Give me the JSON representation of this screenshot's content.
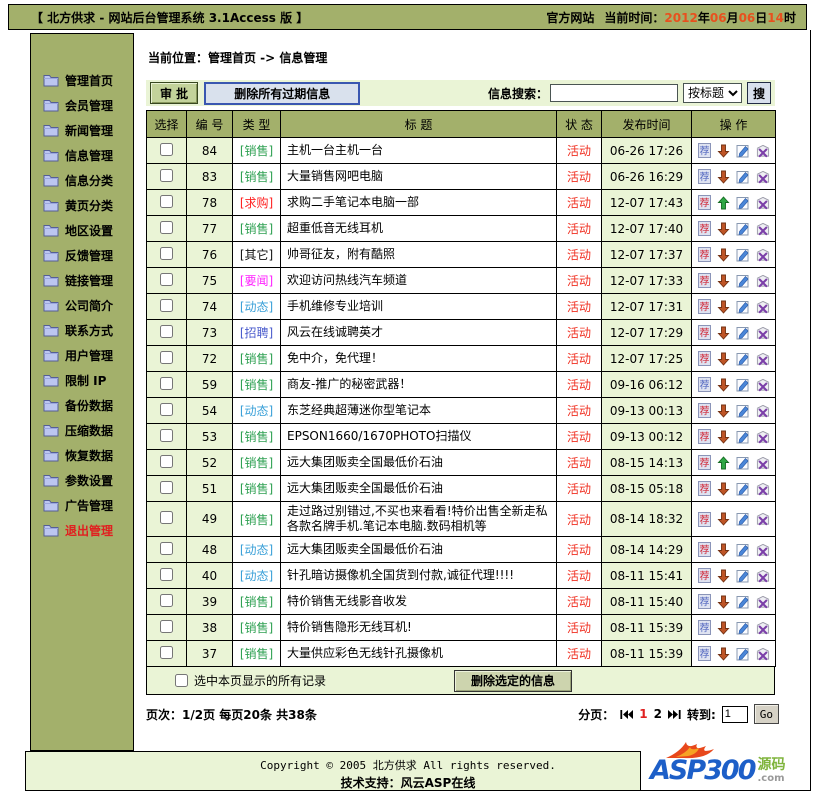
{
  "colors": {
    "olive": "#A3B06B",
    "light_green": "#EAF4D6",
    "status_red": "#F03022",
    "date_orange": "#E8501E",
    "recommended_red": "#D02838",
    "recommend_blue": "#5468C0",
    "type_sale_green": "#2EA052",
    "type_buy_red": "#FF2222",
    "type_other_black": "#111111",
    "type_news_magenta": "#FF22FF",
    "type_dynamic_blue": "#3AA0D8",
    "type_job_blue": "#4A5BCC"
  },
  "icons": {
    "folder": "folder-icon",
    "recommend": "recommend-icon (荐)",
    "move_up": "up-arrow-icon",
    "move_down": "down-arrow-icon",
    "edit": "edit-icon",
    "delete": "delete-icon",
    "first_page": "first-page-icon",
    "last_page": "last-page-icon"
  },
  "topbar": {
    "title": "【 北方供求 - 网站后台管理系统 3.1Access 版 】",
    "official_site": "官方网站",
    "time_label": "当前时间：",
    "time_parts": [
      {
        "text": "2012",
        "hl": true
      },
      {
        "text": "年",
        "hl": false
      },
      {
        "text": "06",
        "hl": true
      },
      {
        "text": "月",
        "hl": false
      },
      {
        "text": "06",
        "hl": true
      },
      {
        "text": "日",
        "hl": false
      },
      {
        "text": "14",
        "hl": true
      },
      {
        "text": "时",
        "hl": false
      }
    ]
  },
  "sidebar": {
    "items": [
      {
        "label": "管理首页",
        "danger": false
      },
      {
        "label": "会员管理",
        "danger": false
      },
      {
        "label": "新闻管理",
        "danger": false
      },
      {
        "label": "信息管理",
        "danger": false
      },
      {
        "label": "信息分类",
        "danger": false
      },
      {
        "label": "黄页分类",
        "danger": false
      },
      {
        "label": "地区设置",
        "danger": false
      },
      {
        "label": "反馈管理",
        "danger": false
      },
      {
        "label": "链接管理",
        "danger": false
      },
      {
        "label": "公司简介",
        "danger": false
      },
      {
        "label": "联系方式",
        "danger": false
      },
      {
        "label": "用户管理",
        "danger": false
      },
      {
        "label": "限制 IP",
        "danger": false
      },
      {
        "label": "备份数据",
        "danger": false
      },
      {
        "label": "压缩数据",
        "danger": false
      },
      {
        "label": "恢复数据",
        "danger": false
      },
      {
        "label": "参数设置",
        "danger": false
      },
      {
        "label": "广告管理",
        "danger": false
      },
      {
        "label": "退出管理",
        "danger": true
      }
    ]
  },
  "main": {
    "breadcrumb": "当前位置：管理首页 -> 信息管理",
    "toolbar": {
      "approve": "审 批",
      "delete_expired": "删除所有过期信息",
      "search_label": "信息搜索：",
      "search_value": "",
      "search_mode": "按标题",
      "search_button": "搜"
    },
    "table": {
      "headers": [
        "选择",
        "编 号",
        "类 型",
        "标 题",
        "状 态",
        "发布时间",
        "操 作"
      ],
      "rows": [
        {
          "id": "84",
          "type": "[销售]",
          "type_color": "#2EA052",
          "title": "主机一台主机一台",
          "status": "活动",
          "time": "06-26 17:26",
          "recommended": false,
          "arrow": "down"
        },
        {
          "id": "83",
          "type": "[销售]",
          "type_color": "#2EA052",
          "title": "大量销售网吧电脑",
          "status": "活动",
          "time": "06-26 16:29",
          "recommended": false,
          "arrow": "down"
        },
        {
          "id": "78",
          "type": "[求购]",
          "type_color": "#FF2222",
          "title": "求购二手笔记本电脑一部",
          "status": "活动",
          "time": "12-07 17:43",
          "recommended": true,
          "arrow": "up"
        },
        {
          "id": "77",
          "type": "[销售]",
          "type_color": "#2EA052",
          "title": "超重低音无线耳机",
          "status": "活动",
          "time": "12-07 17:40",
          "recommended": true,
          "arrow": "down"
        },
        {
          "id": "76",
          "type": "[其它]",
          "type_color": "#111111",
          "title": "帅哥征友，附有酷照",
          "status": "活动",
          "time": "12-07 17:37",
          "recommended": true,
          "arrow": "down"
        },
        {
          "id": "75",
          "type": "[要闻]",
          "type_color": "#FF22FF",
          "title": "欢迎访问热线汽车频道",
          "status": "活动",
          "time": "12-07 17:33",
          "recommended": true,
          "arrow": "down"
        },
        {
          "id": "74",
          "type": "[动态]",
          "type_color": "#3AA0D8",
          "title": "手机维修专业培训",
          "status": "活动",
          "time": "12-07 17:31",
          "recommended": true,
          "arrow": "down"
        },
        {
          "id": "73",
          "type": "[招聘]",
          "type_color": "#4A5BCC",
          "title": "风云在线诚聘英才",
          "status": "活动",
          "time": "12-07 17:29",
          "recommended": true,
          "arrow": "down"
        },
        {
          "id": "72",
          "type": "[销售]",
          "type_color": "#2EA052",
          "title": "免中介，免代理！",
          "status": "活动",
          "time": "12-07 17:25",
          "recommended": true,
          "arrow": "down"
        },
        {
          "id": "59",
          "type": "[销售]",
          "type_color": "#2EA052",
          "title": "商友-推广的秘密武器！",
          "status": "活动",
          "time": "09-16 06:12",
          "recommended": false,
          "arrow": "down"
        },
        {
          "id": "54",
          "type": "[动态]",
          "type_color": "#3AA0D8",
          "title": "东芝经典超薄迷你型笔记本",
          "status": "活动",
          "time": "09-13 00:13",
          "recommended": true,
          "arrow": "down"
        },
        {
          "id": "53",
          "type": "[销售]",
          "type_color": "#2EA052",
          "title": "EPSON1660/1670PHOTO扫描仪",
          "status": "活动",
          "time": "09-13 00:12",
          "recommended": true,
          "arrow": "down"
        },
        {
          "id": "52",
          "type": "[销售]",
          "type_color": "#2EA052",
          "title": "远大集团贩卖全国最低价石油",
          "status": "活动",
          "time": "08-15 14:13",
          "recommended": true,
          "arrow": "up"
        },
        {
          "id": "51",
          "type": "[销售]",
          "type_color": "#2EA052",
          "title": "远大集团贩卖全国最低价石油",
          "status": "活动",
          "time": "08-15 05:18",
          "recommended": true,
          "arrow": "down"
        },
        {
          "id": "49",
          "type": "[销售]",
          "type_color": "#2EA052",
          "title": "走过路过别错过,不买也来看看!特价出售全新走私各款名牌手机.笔记本电脑.数码相机等",
          "status": "活动",
          "time": "08-14 18:32",
          "recommended": true,
          "arrow": "down"
        },
        {
          "id": "48",
          "type": "[动态]",
          "type_color": "#3AA0D8",
          "title": "远大集团贩卖全国最低价石油",
          "status": "活动",
          "time": "08-14 14:29",
          "recommended": true,
          "arrow": "down"
        },
        {
          "id": "40",
          "type": "[动态]",
          "type_color": "#3AA0D8",
          "title": "针孔暗访摄像机全国货到付款,诚征代理!!!!",
          "status": "活动",
          "time": "08-11 15:41",
          "recommended": true,
          "arrow": "down"
        },
        {
          "id": "39",
          "type": "[销售]",
          "type_color": "#2EA052",
          "title": "特价销售无线影音收发",
          "status": "活动",
          "time": "08-11 15:40",
          "recommended": false,
          "arrow": "down"
        },
        {
          "id": "38",
          "type": "[销售]",
          "type_color": "#2EA052",
          "title": "特价销售隐形无线耳机!",
          "status": "活动",
          "time": "08-11 15:39",
          "recommended": false,
          "arrow": "down"
        },
        {
          "id": "37",
          "type": "[销售]",
          "type_color": "#2EA052",
          "title": "大量供应彩色无线针孔摄像机",
          "status": "活动",
          "time": "08-11 15:39",
          "recommended": false,
          "arrow": "down"
        }
      ]
    },
    "bulk": {
      "select_all": "选中本页显示的所有记录",
      "delete_selected": "删除选定的信息"
    },
    "pagination": {
      "page_info": "页次：1/2页 每页20条 共38条",
      "pager_label": "分页：",
      "current_page": "1",
      "other_page": "2",
      "goto_label": "转到:",
      "goto_value": "1",
      "go_button": "Go"
    }
  },
  "footer": {
    "copyright": "Copyright © 2005  北方供求 All rights reserved.",
    "support": "技术支持：风云ASP在线",
    "logo": {
      "brand": "ASP300",
      "tag": "源码",
      "domain": ".com"
    }
  }
}
